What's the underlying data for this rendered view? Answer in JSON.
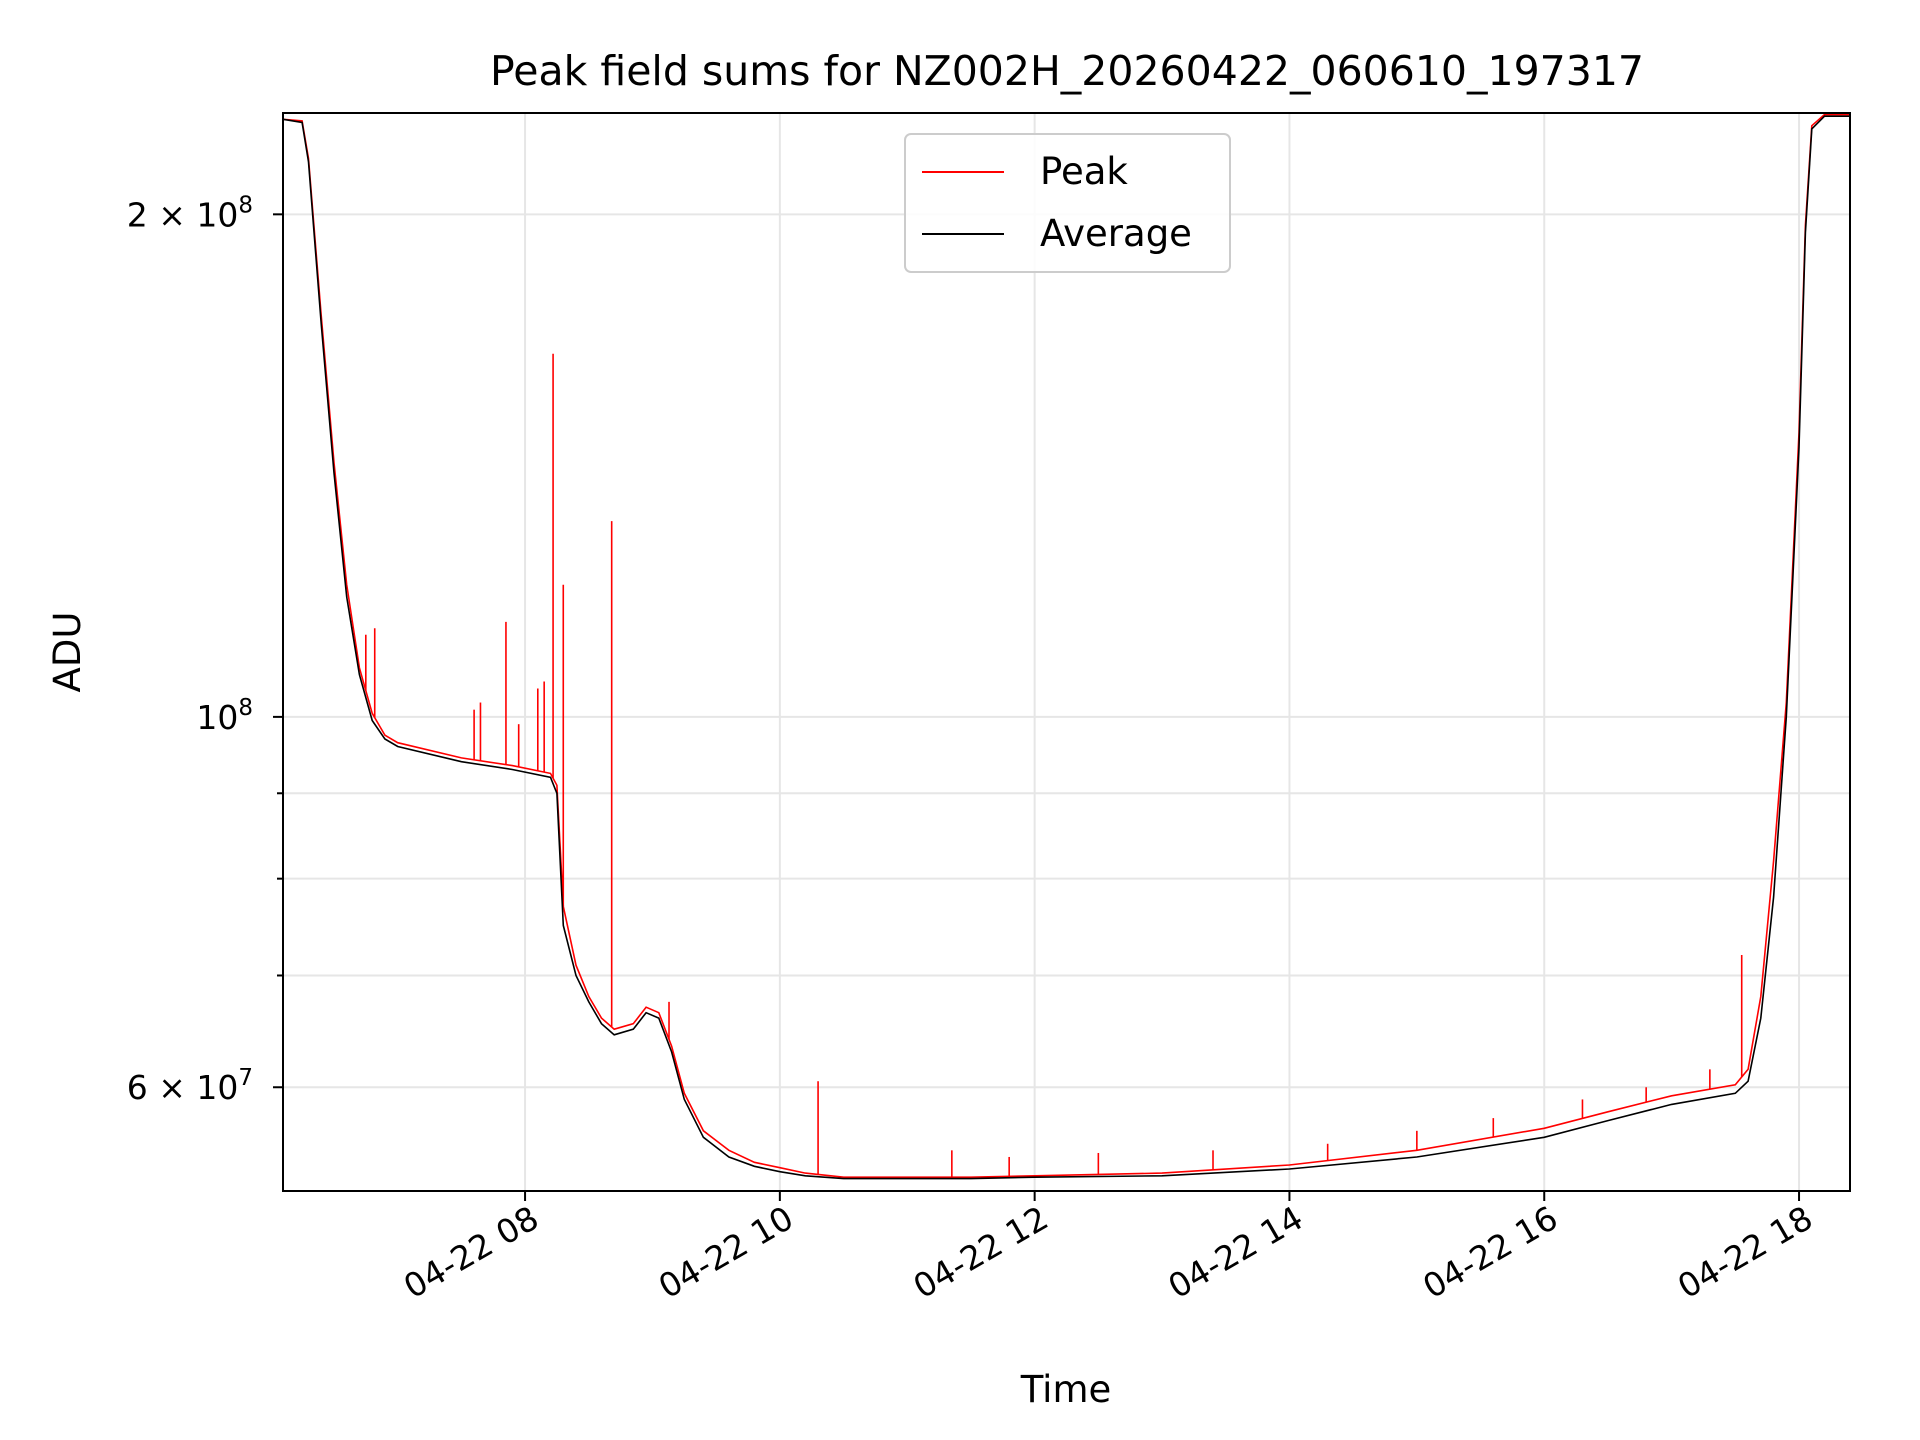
{
  "chart_data": {
    "type": "line",
    "title": "Peak field sums for NZ002H_20260422_060610_197317",
    "xlabel": "Time",
    "ylabel": "ADU",
    "x_unit": "hours (2026-04-22, local time)",
    "xlim": [
      6.1,
      18.4
    ],
    "ylim": [
      52000000,
      230000000
    ],
    "yscale": "log",
    "grid": true,
    "legend_position": "upper center",
    "x_ticks": [
      {
        "value": 8,
        "label": "04-22 08"
      },
      {
        "value": 10,
        "label": "04-22 10"
      },
      {
        "value": 12,
        "label": "04-22 12"
      },
      {
        "value": 14,
        "label": "04-22 14"
      },
      {
        "value": 16,
        "label": "04-22 16"
      },
      {
        "value": 18,
        "label": "04-22 18"
      }
    ],
    "y_major_ticks": [
      {
        "value": 60000000,
        "base": "6 × 10",
        "exp": "7"
      },
      {
        "value": 100000000,
        "base": "10",
        "exp": "8"
      },
      {
        "value": 200000000,
        "base": "2 × 10",
        "exp": "8"
      }
    ],
    "y_minor_gridlines": [
      70000000,
      80000000,
      90000000
    ],
    "series": [
      {
        "name": "Average",
        "color": "#000000",
        "points": [
          [
            6.1,
            228000000
          ],
          [
            6.25,
            227000000
          ],
          [
            6.3,
            215000000
          ],
          [
            6.4,
            172000000
          ],
          [
            6.5,
            140000000
          ],
          [
            6.6,
            118000000
          ],
          [
            6.7,
            106000000
          ],
          [
            6.8,
            99500000
          ],
          [
            6.9,
            97000000
          ],
          [
            7.0,
            96000000
          ],
          [
            7.5,
            94000000
          ],
          [
            7.9,
            93000000
          ],
          [
            8.2,
            92000000
          ],
          [
            8.25,
            90000000
          ],
          [
            8.3,
            75000000
          ],
          [
            8.4,
            70000000
          ],
          [
            8.5,
            67500000
          ],
          [
            8.6,
            65500000
          ],
          [
            8.7,
            64500000
          ],
          [
            8.85,
            65000000
          ],
          [
            8.95,
            66500000
          ],
          [
            9.05,
            66000000
          ],
          [
            9.15,
            63000000
          ],
          [
            9.25,
            59000000
          ],
          [
            9.4,
            56000000
          ],
          [
            9.6,
            54500000
          ],
          [
            9.8,
            53800000
          ],
          [
            10.0,
            53400000
          ],
          [
            10.2,
            53100000
          ],
          [
            10.5,
            52900000
          ],
          [
            11.0,
            52900000
          ],
          [
            11.5,
            52900000
          ],
          [
            12.0,
            53000000
          ],
          [
            13.0,
            53100000
          ],
          [
            14.0,
            53600000
          ],
          [
            15.0,
            54500000
          ],
          [
            16.0,
            56000000
          ],
          [
            16.5,
            57300000
          ],
          [
            17.0,
            58600000
          ],
          [
            17.5,
            59500000
          ],
          [
            17.6,
            60500000
          ],
          [
            17.7,
            66000000
          ],
          [
            17.8,
            78000000
          ],
          [
            17.9,
            100000000
          ],
          [
            18.0,
            145000000
          ],
          [
            18.05,
            195000000
          ],
          [
            18.1,
            225000000
          ],
          [
            18.2,
            229000000
          ],
          [
            18.4,
            229000000
          ]
        ]
      },
      {
        "name": "Peak",
        "color": "#ff0000",
        "points": [
          [
            6.1,
            228000000
          ],
          [
            6.25,
            227500000
          ],
          [
            6.3,
            216000000
          ],
          [
            6.4,
            174000000
          ],
          [
            6.5,
            142000000
          ],
          [
            6.6,
            120000000
          ],
          [
            6.7,
            107000000
          ],
          [
            6.8,
            100500000
          ],
          [
            6.9,
            97500000
          ],
          [
            7.0,
            96500000
          ],
          [
            7.5,
            94500000
          ],
          [
            7.9,
            93500000
          ],
          [
            8.2,
            92500000
          ],
          [
            8.25,
            91000000
          ],
          [
            8.3,
            77000000
          ],
          [
            8.4,
            71000000
          ],
          [
            8.5,
            68000000
          ],
          [
            8.6,
            66000000
          ],
          [
            8.7,
            65000000
          ],
          [
            8.85,
            65500000
          ],
          [
            8.95,
            67000000
          ],
          [
            9.05,
            66500000
          ],
          [
            9.15,
            63500000
          ],
          [
            9.25,
            59500000
          ],
          [
            9.4,
            56500000
          ],
          [
            9.6,
            55000000
          ],
          [
            9.8,
            54100000
          ],
          [
            10.0,
            53700000
          ],
          [
            10.2,
            53300000
          ],
          [
            10.5,
            53000000
          ],
          [
            11.0,
            53000000
          ],
          [
            11.5,
            53000000
          ],
          [
            12.0,
            53100000
          ],
          [
            13.0,
            53300000
          ],
          [
            14.0,
            53900000
          ],
          [
            15.0,
            55000000
          ],
          [
            16.0,
            56700000
          ],
          [
            16.5,
            58000000
          ],
          [
            17.0,
            59300000
          ],
          [
            17.5,
            60200000
          ],
          [
            17.6,
            61500000
          ],
          [
            17.7,
            68000000
          ],
          [
            17.8,
            82000000
          ],
          [
            17.9,
            102000000
          ],
          [
            18.0,
            148000000
          ],
          [
            18.05,
            197000000
          ],
          [
            18.1,
            226000000
          ],
          [
            18.2,
            229500000
          ],
          [
            18.4,
            229500000
          ]
        ],
        "spikes": [
          [
            6.75,
            112000000
          ],
          [
            6.82,
            113000000
          ],
          [
            7.6,
            101000000
          ],
          [
            7.65,
            102000000
          ],
          [
            7.85,
            114000000
          ],
          [
            7.95,
            99000000
          ],
          [
            8.1,
            104000000
          ],
          [
            8.15,
            105000000
          ],
          [
            8.22,
            165000000
          ],
          [
            8.3,
            120000000
          ],
          [
            8.68,
            131000000
          ],
          [
            9.13,
            67500000
          ],
          [
            10.3,
            60500000
          ],
          [
            11.35,
            55000000
          ],
          [
            11.8,
            54500000
          ],
          [
            12.5,
            54800000
          ],
          [
            13.4,
            55000000
          ],
          [
            14.3,
            55500000
          ],
          [
            15.0,
            56500000
          ],
          [
            15.6,
            57500000
          ],
          [
            16.3,
            59000000
          ],
          [
            16.8,
            60000000
          ],
          [
            17.3,
            61500000
          ],
          [
            17.55,
            72000000
          ]
        ]
      }
    ]
  }
}
